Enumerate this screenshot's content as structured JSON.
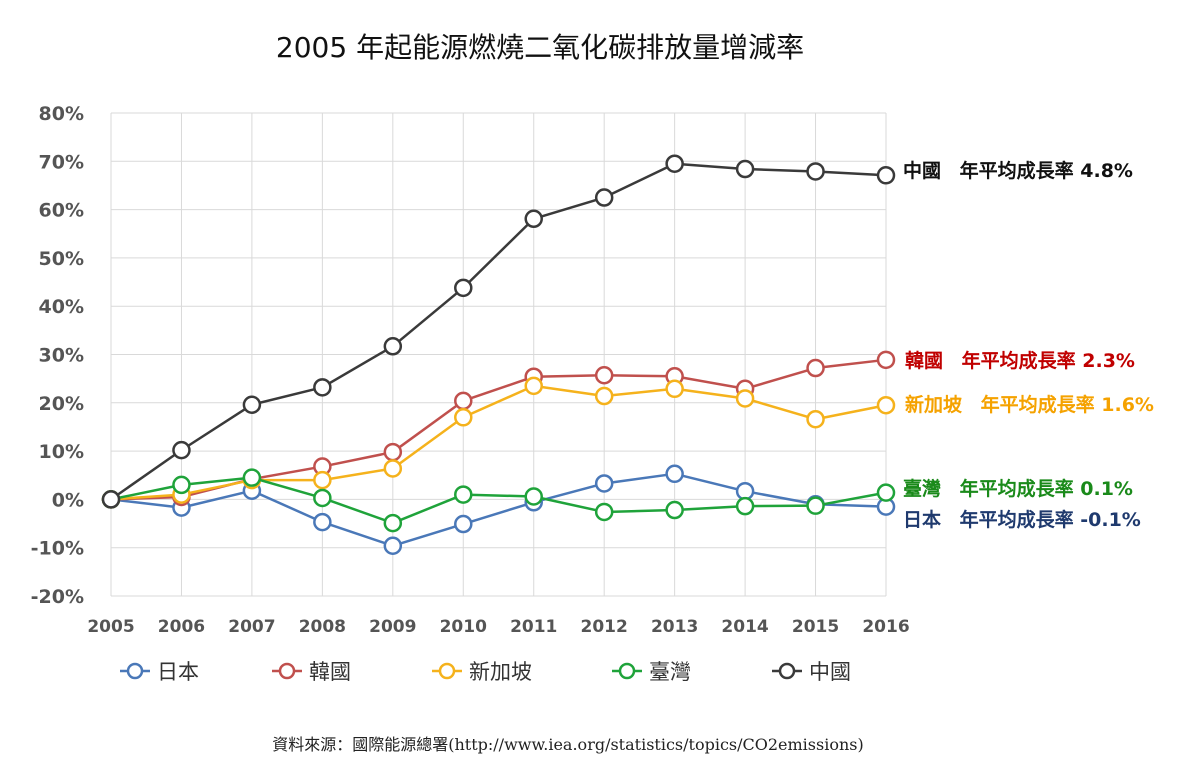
{
  "chart_data": {
    "type": "line",
    "title": "2005 年起能源燃燒二氧化碳排放量增減率",
    "x": [
      "2005",
      "2006",
      "2007",
      "2008",
      "2009",
      "2010",
      "2011",
      "2012",
      "2013",
      "2014",
      "2015",
      "2016"
    ],
    "ylim": [
      -20,
      80
    ],
    "yticks": [
      "80%",
      "70%",
      "60%",
      "50%",
      "40%",
      "30%",
      "20%",
      "10%",
      "0%",
      "-10%",
      "-20%"
    ],
    "grid": true,
    "legend_position": "bottom",
    "series": [
      {
        "name": "日本",
        "color": "#4a78b8",
        "values": [
          0,
          -1.7,
          1.8,
          -4.7,
          -9.6,
          -5.1,
          -0.6,
          3.3,
          5.3,
          1.7,
          -1.0,
          -1.5
        ]
      },
      {
        "name": "韓國",
        "color": "#c0504d",
        "values": [
          0,
          0.5,
          4.2,
          6.8,
          9.8,
          20.4,
          25.4,
          25.7,
          25.5,
          22.9,
          27.2,
          28.9
        ]
      },
      {
        "name": "新加坡",
        "color": "#f5b21c",
        "values": [
          0,
          1.0,
          4.0,
          4.0,
          6.4,
          17.0,
          23.5,
          21.4,
          22.9,
          20.9,
          16.6,
          19.5
        ]
      },
      {
        "name": "臺灣",
        "color": "#1fa33a",
        "values": [
          0,
          3.0,
          4.5,
          0.3,
          -4.9,
          1.0,
          0.6,
          -2.6,
          -2.2,
          -1.4,
          -1.3,
          1.4
        ]
      },
      {
        "name": "中國",
        "color": "#3a3a3a",
        "values": [
          0,
          10.2,
          19.6,
          23.2,
          31.7,
          43.8,
          58.1,
          62.5,
          69.5,
          68.4,
          67.9,
          67.1
        ]
      }
    ],
    "annotations": [
      {
        "label": "中國",
        "text": "年平均成長率 4.8%",
        "color": "#111111"
      },
      {
        "label": "韓國",
        "text": "年平均成長率 2.3%",
        "color": "#c00000"
      },
      {
        "label": "新加坡",
        "text": "年平均成長率 1.6%",
        "color": "#f5a200"
      },
      {
        "label": "臺灣",
        "text": "年平均成長率 0.1%",
        "color": "#1a8a1a"
      },
      {
        "label": "日本",
        "text": "年平均成長率  -0.1%",
        "color": "#1f3a6e"
      }
    ],
    "source": "資料來源：國際能源總署(http://www.iea.org/statistics/topics/CO2emissions)"
  }
}
